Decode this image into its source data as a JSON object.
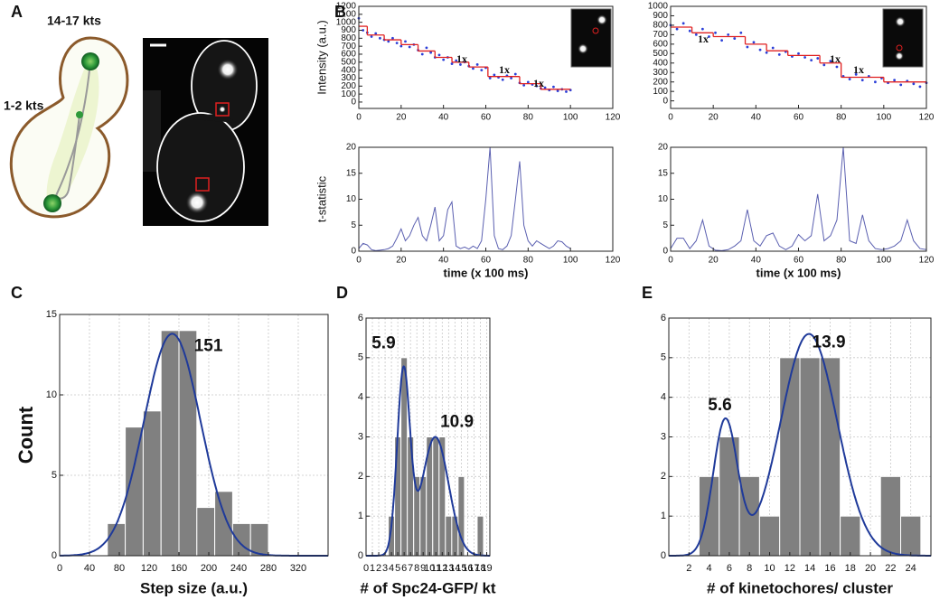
{
  "figure": {
    "panel_labels": [
      "A",
      "B",
      "C",
      "D",
      "E"
    ],
    "illustration": {
      "labels": [
        "14-17 kts",
        "1-2 kts"
      ]
    }
  },
  "chart_data": [
    {
      "type": "scatter",
      "ylabel": "Intensity (a.u.)",
      "xlim": [
        0,
        120
      ],
      "xticks": [
        0,
        20,
        40,
        60,
        80,
        100,
        120
      ],
      "ylim": [
        -80,
        1200
      ],
      "yticks": [
        0,
        100,
        200,
        300,
        400,
        500,
        600,
        700,
        800,
        900,
        1000,
        1100,
        1200
      ],
      "series": [
        {
          "mode": "markers",
          "color": "#2b3fd8",
          "x": [
            0,
            2,
            4,
            6,
            8,
            10,
            12,
            14,
            16,
            18,
            20,
            22,
            24,
            26,
            28,
            30,
            32,
            34,
            36,
            38,
            40,
            42,
            44,
            46,
            48,
            50,
            52,
            54,
            56,
            58,
            60,
            62,
            64,
            66,
            68,
            70,
            72,
            74,
            76,
            78,
            80,
            82,
            84,
            86,
            88,
            90,
            92,
            94,
            96,
            98,
            100
          ],
          "values": [
            1050,
            900,
            870,
            820,
            860,
            800,
            780,
            760,
            800,
            740,
            700,
            760,
            690,
            720,
            650,
            600,
            680,
            620,
            560,
            590,
            530,
            560,
            480,
            520,
            470,
            500,
            450,
            420,
            470,
            400,
            430,
            300,
            340,
            310,
            280,
            330,
            300,
            350,
            240,
            210,
            250,
            220,
            200,
            170,
            180,
            150,
            190,
            140,
            160,
            130,
            150
          ]
        },
        {
          "mode": "steps",
          "color": "#e02020",
          "x": [
            0,
            4,
            12,
            20,
            28,
            36,
            44,
            52,
            61,
            76,
            86,
            100
          ],
          "values": [
            950,
            840,
            780,
            720,
            640,
            560,
            500,
            440,
            320,
            230,
            160,
            160
          ]
        }
      ],
      "annotations": [
        "1x",
        "1x",
        "1x"
      ]
    },
    {
      "type": "scatter",
      "xlim": [
        0,
        120
      ],
      "xticks": [
        0,
        20,
        40,
        60,
        80,
        100,
        120
      ],
      "ylim": [
        -80,
        1000
      ],
      "yticks": [
        0,
        100,
        200,
        300,
        400,
        500,
        600,
        700,
        800,
        900,
        1000
      ],
      "series": [
        {
          "mode": "markers",
          "color": "#2b3fd8",
          "x": [
            0,
            3,
            6,
            9,
            12,
            15,
            18,
            21,
            24,
            27,
            30,
            33,
            36,
            39,
            42,
            45,
            48,
            51,
            54,
            57,
            60,
            63,
            66,
            69,
            72,
            75,
            78,
            81,
            84,
            87,
            90,
            93,
            96,
            99,
            102,
            105,
            108,
            111,
            114,
            117,
            120
          ],
          "values": [
            800,
            760,
            820,
            740,
            700,
            760,
            680,
            720,
            640,
            700,
            660,
            720,
            570,
            620,
            540,
            510,
            560,
            490,
            520,
            470,
            500,
            460,
            430,
            450,
            380,
            420,
            360,
            260,
            230,
            280,
            220,
            260,
            200,
            240,
            190,
            220,
            170,
            210,
            180,
            150,
            190
          ]
        },
        {
          "mode": "steps",
          "color": "#e02020",
          "x": [
            0,
            10,
            20,
            35,
            45,
            55,
            70,
            80,
            100,
            120
          ],
          "values": [
            780,
            720,
            680,
            600,
            530,
            480,
            400,
            250,
            200,
            180
          ]
        }
      ],
      "annotations": [
        "1x",
        "1x",
        "1x"
      ]
    },
    {
      "type": "line",
      "ylabel": "t-statistic",
      "xlabel": "time (x 100 ms)",
      "xlim": [
        0,
        120
      ],
      "xticks": [
        0,
        20,
        40,
        60,
        80,
        100,
        120
      ],
      "ylim": [
        0,
        20
      ],
      "yticks": [
        0,
        5,
        10,
        15,
        20
      ],
      "series": [
        {
          "color": "#5a5fb0",
          "x": [
            0,
            2,
            4,
            6,
            8,
            10,
            12,
            14,
            16,
            18,
            20,
            22,
            24,
            26,
            28,
            30,
            32,
            34,
            36,
            38,
            40,
            42,
            44,
            46,
            48,
            50,
            52,
            54,
            56,
            58,
            60,
            62,
            64,
            66,
            68,
            70,
            72,
            74,
            76,
            78,
            80,
            82,
            84,
            86,
            88,
            90,
            92,
            94,
            96,
            98,
            100
          ],
          "values": [
            0.5,
            1.5,
            1.2,
            0.3,
            0.1,
            0.2,
            0.3,
            0.5,
            1,
            2.5,
            4.3,
            2,
            3,
            5,
            6.5,
            3,
            2,
            5,
            8.5,
            2,
            3,
            8,
            9.5,
            1,
            0.5,
            0.8,
            0.4,
            1,
            0.5,
            2,
            10,
            20,
            3,
            0.5,
            0.3,
            1,
            3,
            10,
            17.3,
            5,
            2,
            1,
            2,
            1.5,
            1,
            0.5,
            1,
            2,
            1.8,
            1,
            0.5
          ]
        }
      ]
    },
    {
      "type": "line",
      "xlabel": "time (x 100 ms)",
      "xlim": [
        0,
        120
      ],
      "xticks": [
        0,
        20,
        40,
        60,
        80,
        100,
        120
      ],
      "ylim": [
        0,
        20
      ],
      "yticks": [
        0,
        5,
        10,
        15,
        20
      ],
      "series": [
        {
          "color": "#5a5fb0",
          "x": [
            0,
            3,
            6,
            9,
            12,
            15,
            18,
            21,
            24,
            27,
            30,
            33,
            36,
            39,
            42,
            45,
            48,
            51,
            54,
            57,
            60,
            63,
            66,
            69,
            72,
            75,
            78,
            81,
            84,
            87,
            90,
            93,
            96,
            99,
            102,
            105,
            108,
            111,
            114,
            117,
            120
          ],
          "values": [
            0.5,
            2.5,
            2.5,
            0.5,
            2,
            6,
            1,
            0.2,
            0.1,
            0.3,
            1,
            2,
            8,
            2,
            1,
            3,
            3.5,
            1,
            0.3,
            1,
            3.2,
            2,
            3,
            11,
            2,
            3,
            6,
            20,
            2,
            1.5,
            7,
            2,
            0.5,
            0.3,
            0.5,
            1,
            2,
            6,
            2,
            0.5,
            0.3
          ]
        }
      ]
    },
    {
      "type": "histogram",
      "xlabel": "Step size (a.u.)",
      "ylabel": "Count",
      "grid": true,
      "color": "#808080",
      "xlim": [
        0,
        360
      ],
      "xticks": [
        0,
        40,
        80,
        120,
        160,
        200,
        240,
        280,
        320
      ],
      "ylim": [
        0,
        15
      ],
      "yticks": [
        0,
        5,
        10,
        15
      ],
      "bins": [
        64,
        88,
        112,
        136,
        160,
        184,
        208,
        232,
        256,
        280
      ],
      "values": [
        2,
        8,
        9,
        14,
        14,
        3,
        4,
        2,
        2
      ],
      "fit": {
        "color": "#1f3a9a",
        "components": [
          {
            "mean": 151,
            "sd": 38,
            "amplitude": 13.8
          }
        ]
      }
    },
    {
      "type": "histogram",
      "xlabel": "# of Spc24-GFP/ kt",
      "grid": true,
      "color": "#808080",
      "xlim": [
        0,
        19.5
      ],
      "xticks": [
        0,
        1,
        2,
        3,
        4,
        5,
        6,
        7,
        8,
        9,
        10,
        11,
        12,
        13,
        14,
        15,
        16,
        17,
        18,
        19
      ],
      "ylim": [
        0,
        6
      ],
      "yticks": [
        0,
        1,
        2,
        3,
        4,
        5,
        6
      ],
      "bins": [
        3.5,
        4.5,
        5.5,
        6.5,
        7.5,
        8.5,
        9.5,
        10.5,
        11.5,
        12.5,
        13.5,
        14.5,
        15.5,
        16.5,
        17.5,
        18.5
      ],
      "values": [
        1,
        3,
        5,
        3,
        2,
        2,
        3,
        3,
        3,
        1,
        1,
        2,
        0,
        0,
        1
      ],
      "fit": {
        "color": "#1f3a9a",
        "components": [
          {
            "mean": 5.9,
            "sd": 1.0,
            "amplitude": 4.6
          },
          {
            "mean": 10.9,
            "sd": 2.1,
            "amplitude": 3.0
          }
        ]
      }
    },
    {
      "type": "histogram",
      "xlabel": "# of kinetochores/ cluster",
      "grid": true,
      "color": "#808080",
      "xlim": [
        0,
        26
      ],
      "xticks": [
        2,
        4,
        6,
        8,
        10,
        12,
        14,
        16,
        18,
        20,
        22,
        24
      ],
      "ylim": [
        0,
        6
      ],
      "yticks": [
        0,
        1,
        2,
        3,
        4,
        5,
        6
      ],
      "bins": [
        3,
        5,
        7,
        9,
        11,
        13,
        15,
        17,
        19,
        21,
        23,
        25
      ],
      "values": [
        2,
        3,
        2,
        1,
        5,
        5,
        5,
        1,
        0,
        2,
        1
      ],
      "fit": {
        "color": "#1f3a9a",
        "components": [
          {
            "mean": 5.6,
            "sd": 1.2,
            "amplitude": 3.4
          },
          {
            "mean": 13.9,
            "sd": 2.8,
            "amplitude": 5.6
          }
        ]
      }
    }
  ]
}
